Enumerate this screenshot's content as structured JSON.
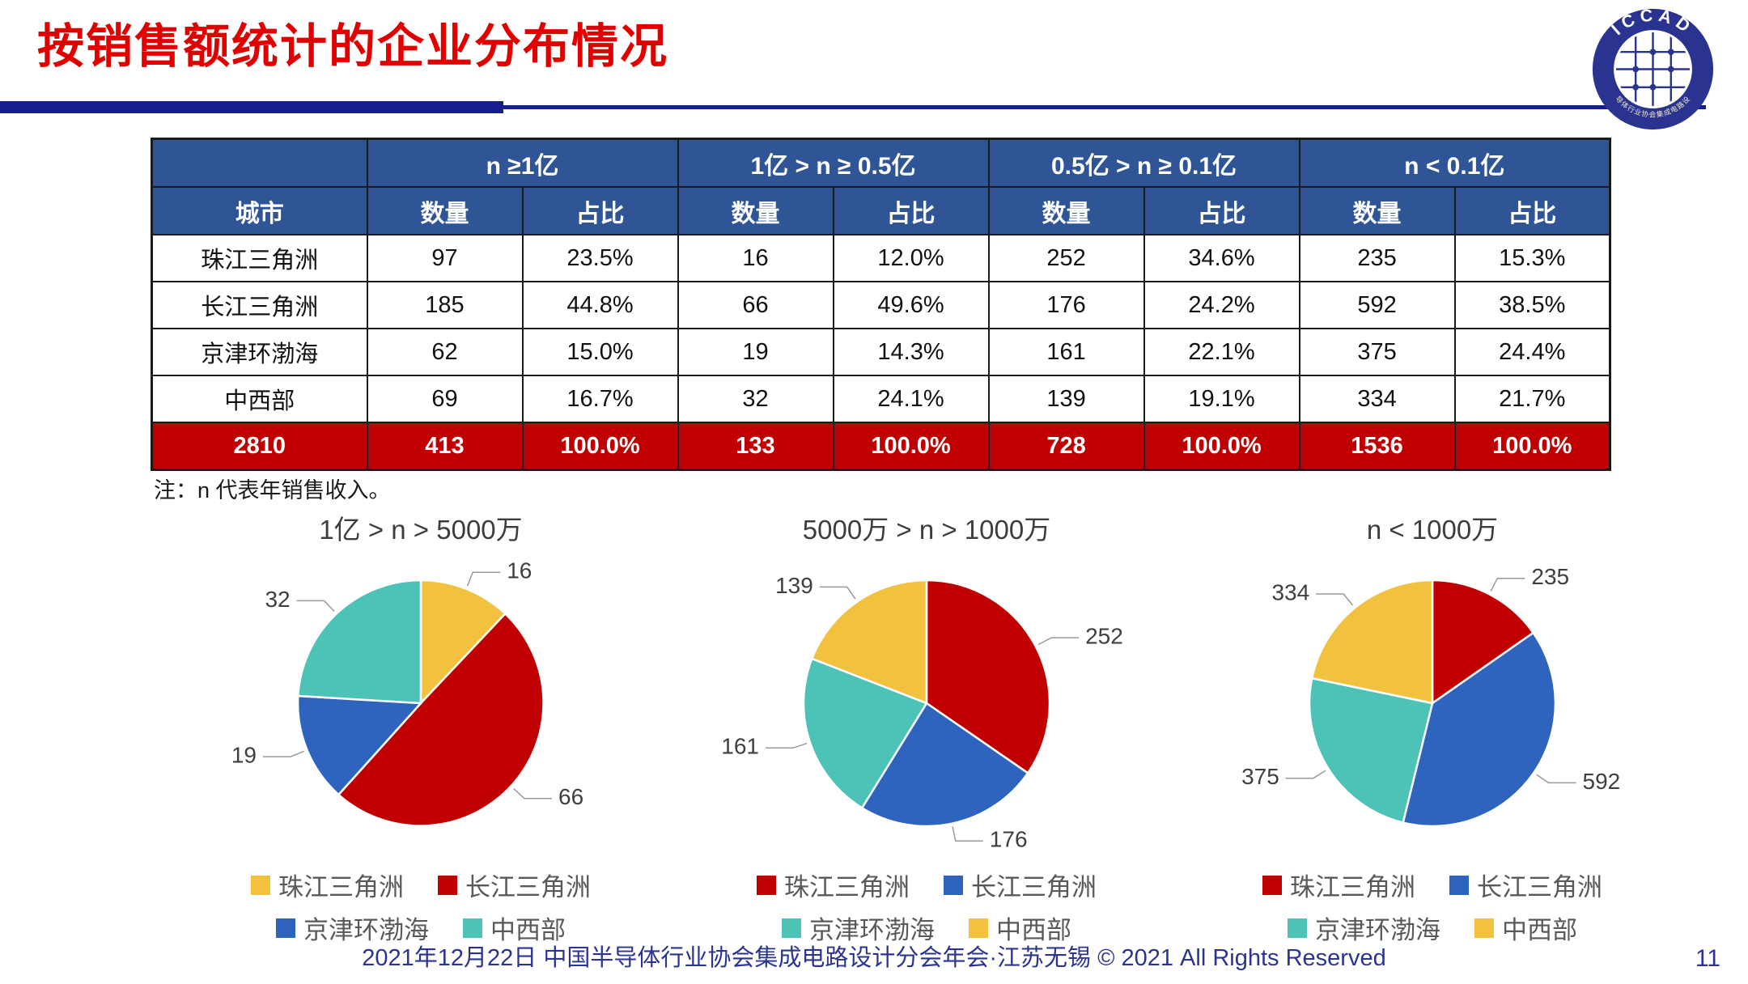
{
  "title": "按销售额统计的企业分布情况",
  "logo": {
    "top_text": "ICCAD",
    "bottom_text": "中国半导体行业协会集成电路设计分会"
  },
  "table": {
    "city_header": "城市",
    "qty_header": "数量",
    "pct_header": "占比",
    "groups": [
      "n ≥1亿",
      "1亿 > n ≥ 0.5亿",
      "0.5亿 > n ≥ 0.1亿",
      "n < 0.1亿"
    ],
    "rows": [
      {
        "city": "珠江三角洲",
        "cells": [
          "97",
          "23.5%",
          "16",
          "12.0%",
          "252",
          "34.6%",
          "235",
          "15.3%"
        ]
      },
      {
        "city": "长江三角洲",
        "cells": [
          "185",
          "44.8%",
          "66",
          "49.6%",
          "176",
          "24.2%",
          "592",
          "38.5%"
        ]
      },
      {
        "city": "京津环渤海",
        "cells": [
          "62",
          "15.0%",
          "19",
          "14.3%",
          "161",
          "22.1%",
          "375",
          "24.4%"
        ]
      },
      {
        "city": "中西部",
        "cells": [
          "69",
          "16.7%",
          "32",
          "24.1%",
          "139",
          "19.1%",
          "334",
          "21.7%"
        ]
      }
    ],
    "total_row": [
      "2810",
      "413",
      "100.0%",
      "133",
      "100.0%",
      "728",
      "100.0%",
      "1536",
      "100.0%"
    ]
  },
  "note": "注：n 代表年销售收入。",
  "chart_data": [
    {
      "type": "pie",
      "title": "1亿 > n > 5000万",
      "categories": [
        "珠江三角洲",
        "长江三角洲",
        "京津环渤海",
        "中西部"
      ],
      "values": [
        16,
        66,
        19,
        32
      ],
      "colors": [
        "#F2C23E",
        "#C00000",
        "#2E63BE",
        "#4DC3B7"
      ],
      "total": 133,
      "legend_position": "bottom",
      "start_angle": "top, clockwise"
    },
    {
      "type": "pie",
      "title": "5000万 > n > 1000万",
      "categories": [
        "珠江三角洲",
        "长江三角洲",
        "京津环渤海",
        "中西部"
      ],
      "values": [
        252,
        176,
        161,
        139
      ],
      "colors": [
        "#C00000",
        "#2E63BE",
        "#4DC3B7",
        "#F2C23E"
      ],
      "total": 728,
      "legend_position": "bottom",
      "start_angle": "top, clockwise"
    },
    {
      "type": "pie",
      "title": "n < 1000万",
      "categories": [
        "珠江三角洲",
        "长江三角洲",
        "京津环渤海",
        "中西部"
      ],
      "values": [
        235,
        592,
        375,
        334
      ],
      "colors": [
        "#C00000",
        "#2E63BE",
        "#4DC3B7",
        "#F2C23E"
      ],
      "total": 1536,
      "legend_position": "bottom",
      "start_angle": "top, clockwise"
    }
  ],
  "footer": {
    "text": "2021年12月22日 中国半导体行业协会集成电路设计分会年会·江苏无锡 © 2021 All Rights Reserved",
    "page_number": "11"
  },
  "colors": {
    "header_blue": "#2F5597",
    "total_red": "#C00000",
    "title_red": "#E00000",
    "rule_navy": "#141E8C",
    "footer_navy": "#2B3490"
  }
}
